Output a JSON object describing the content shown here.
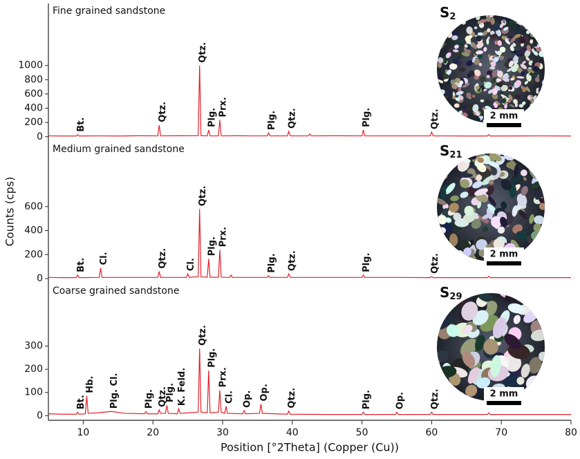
{
  "chart_data": [
    {
      "type": "line",
      "title": "Fine grained sandstone",
      "sample": {
        "main": "S",
        "sub": "2"
      },
      "scale_bar": "2 mm",
      "xlim": [
        5,
        80
      ],
      "ylim": [
        -70,
        1870
      ],
      "yticks": [
        0,
        200,
        400,
        600,
        800,
        1000
      ],
      "series": [
        {
          "color": "#e0202a",
          "x": [
            5,
            7,
            9.0,
            9.2,
            9.4,
            12,
            15,
            18,
            20.7,
            20.9,
            21.1,
            24,
            26.5,
            26.7,
            26.9,
            27.8,
            28.0,
            28.2,
            29.4,
            29.6,
            29.8,
            32,
            34,
            36.4,
            36.6,
            36.8,
            39.3,
            39.5,
            39.7,
            42.3,
            42.5,
            42.7,
            46,
            50.0,
            50.2,
            50.4,
            55,
            59.8,
            60.0,
            60.2,
            65,
            68.0,
            68.2,
            68.4,
            75,
            80
          ],
          "values": [
            12,
            10,
            10,
            30,
            10,
            12,
            10,
            14,
            12,
            165,
            12,
            14,
            15,
            1000,
            15,
            12,
            95,
            12,
            12,
            235,
            12,
            14,
            12,
            12,
            55,
            12,
            12,
            75,
            12,
            12,
            40,
            12,
            14,
            12,
            95,
            12,
            12,
            12,
            65,
            12,
            10,
            10,
            30,
            10,
            12,
            10
          ]
        }
      ],
      "annotations": [
        {
          "text": "Bt.",
          "x": 9.2
        },
        {
          "text": "Qtz.",
          "x": 20.9
        },
        {
          "text": "Qtz.",
          "x": 26.7
        },
        {
          "text": "Plg.",
          "x": 28.0
        },
        {
          "text": "Prx.",
          "x": 29.6
        },
        {
          "text": "Plg.",
          "x": 36.6
        },
        {
          "text": "Qtz.",
          "x": 39.5
        },
        {
          "text": "Plg.",
          "x": 50.2
        },
        {
          "text": "Qtz.",
          "x": 60.0
        }
      ]
    },
    {
      "type": "line",
      "title": "Medium grained sandstone",
      "sample": {
        "main": "S",
        "sub": "21"
      },
      "scale_bar": "2 mm",
      "ylabel": "Counts (cps)",
      "xlim": [
        5,
        80
      ],
      "ylim": [
        -40,
        1140
      ],
      "yticks": [
        0,
        200,
        400,
        600
      ],
      "series": [
        {
          "color": "#e0202a",
          "x": [
            5,
            7,
            9.0,
            9.2,
            9.4,
            12.3,
            12.5,
            12.7,
            16,
            20.7,
            20.9,
            21.1,
            24.8,
            25.0,
            25.2,
            26.5,
            26.7,
            26.9,
            27.8,
            28.0,
            28.2,
            29.4,
            29.6,
            29.8,
            31,
            31.2,
            31.4,
            34,
            36.4,
            36.6,
            36.8,
            39.3,
            39.5,
            39.7,
            45,
            50.0,
            50.2,
            50.4,
            55,
            59.8,
            60.0,
            60.2,
            68.0,
            68.2,
            68.4,
            80
          ],
          "values": [
            10,
            8,
            8,
            30,
            8,
            10,
            90,
            10,
            10,
            10,
            60,
            10,
            10,
            40,
            12,
            15,
            580,
            15,
            12,
            165,
            12,
            12,
            240,
            12,
            10,
            30,
            10,
            10,
            10,
            25,
            10,
            10,
            40,
            10,
            10,
            10,
            30,
            10,
            10,
            8,
            18,
            8,
            8,
            20,
            8,
            8
          ]
        }
      ],
      "annotations": [
        {
          "text": "Bt.",
          "x": 9.2
        },
        {
          "text": "Cl.",
          "x": 12.5
        },
        {
          "text": "Qtz.",
          "x": 20.9
        },
        {
          "text": "Cl.",
          "x": 25.0
        },
        {
          "text": "Qtz.",
          "x": 26.7
        },
        {
          "text": "Plg.",
          "x": 28.0
        },
        {
          "text": "Prx.",
          "x": 29.6
        },
        {
          "text": "Plg.",
          "x": 36.6
        },
        {
          "text": "Qtz.",
          "x": 39.5
        },
        {
          "text": "Plg.",
          "x": 50.2
        },
        {
          "text": "Qtz.",
          "x": 60.0
        }
      ]
    },
    {
      "type": "line",
      "title": "Coarse grained sandstone",
      "sample": {
        "main": "S",
        "sub": "29"
      },
      "scale_bar": "2 mm",
      "xlabel": "Position [°2Theta] (Copper (Cu))",
      "xlim": [
        5,
        80
      ],
      "xticks": [
        10,
        20,
        30,
        40,
        50,
        60,
        70,
        80
      ],
      "ylim": [
        -20,
        570
      ],
      "yticks": [
        0,
        100,
        200,
        300
      ],
      "series": [
        {
          "color": "#e0202a",
          "x": [
            5,
            7,
            9.0,
            9.2,
            9.4,
            10.3,
            10.5,
            10.7,
            12,
            14,
            16,
            18.8,
            19.0,
            19.2,
            20.7,
            20.9,
            21.1,
            21.8,
            22.0,
            22.2,
            23.5,
            23.7,
            23.9,
            25,
            26.5,
            26.7,
            26.9,
            27.8,
            28.0,
            28.2,
            29.4,
            29.6,
            29.8,
            30.3,
            30.5,
            30.7,
            32.9,
            33.1,
            33.3,
            35.3,
            35.5,
            35.7,
            39.3,
            39.5,
            39.7,
            45,
            50.0,
            50.2,
            50.4,
            54.8,
            55.0,
            55.2,
            59.8,
            60.0,
            60.2,
            68.0,
            68.2,
            68.4,
            80
          ],
          "values": [
            8,
            6,
            6,
            15,
            6,
            8,
            85,
            10,
            12,
            18,
            10,
            8,
            18,
            8,
            8,
            25,
            10,
            10,
            45,
            10,
            8,
            30,
            10,
            12,
            15,
            290,
            15,
            12,
            195,
            12,
            15,
            110,
            15,
            10,
            40,
            10,
            8,
            22,
            8,
            10,
            50,
            10,
            6,
            20,
            6,
            5,
            5,
            15,
            5,
            5,
            15,
            5,
            5,
            15,
            5,
            5,
            12,
            5,
            5
          ]
        }
      ],
      "annotations": [
        {
          "text": "Bt.",
          "x": 9.2
        },
        {
          "text": "Hb.",
          "x": 10.5
        },
        {
          "text": "Plg. Cl.",
          "x": 14
        },
        {
          "text": "Plg.",
          "x": 19.0
        },
        {
          "text": "Qtz.",
          "x": 20.9
        },
        {
          "text": "Plg.",
          "x": 22.0
        },
        {
          "text": "K. Feld.",
          "x": 23.7
        },
        {
          "text": "Qtz.",
          "x": 26.7
        },
        {
          "text": "Plg.",
          "x": 28.0
        },
        {
          "text": "Prx.",
          "x": 29.6
        },
        {
          "text": "Cl.",
          "x": 30.5
        },
        {
          "text": "Op.",
          "x": 33.1
        },
        {
          "text": "Op.",
          "x": 35.5
        },
        {
          "text": "Qtz.",
          "x": 39.5
        },
        {
          "text": "Plg.",
          "x": 50.2
        },
        {
          "text": "Op.",
          "x": 55.0
        },
        {
          "text": "Qtz.",
          "x": 60.0
        }
      ]
    }
  ]
}
